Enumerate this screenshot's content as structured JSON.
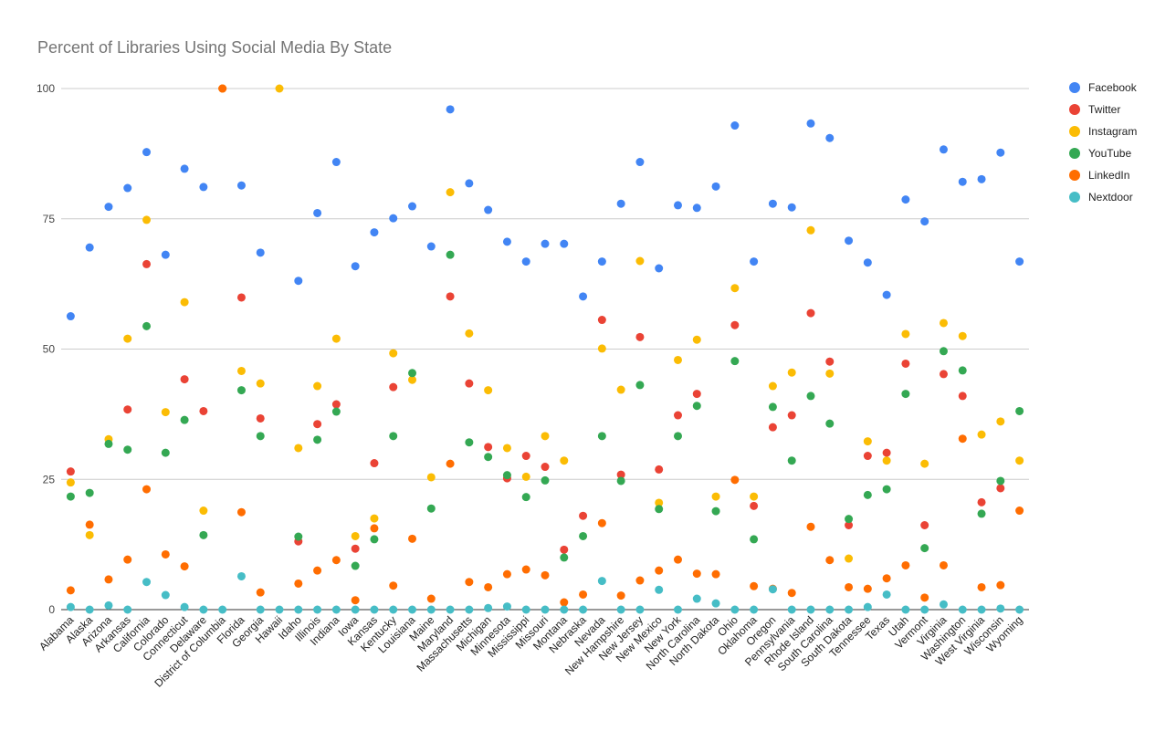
{
  "chart_data": {
    "type": "scatter",
    "title": "Percent of Libraries Using Social Media By State",
    "xlabel": "",
    "ylabel": "",
    "ylim": [
      0,
      100
    ],
    "yticks": [
      0,
      25,
      50,
      75,
      100
    ],
    "grid": true,
    "legend_position": "right",
    "categories": [
      "Alabama",
      "Alaska",
      "Arizona",
      "Arkansas",
      "California",
      "Colorado",
      "Connecticut",
      "Delaware",
      "District of Columbia",
      "Florida",
      "Georgia",
      "Hawaii",
      "Idaho",
      "Illinois",
      "Indiana",
      "Iowa",
      "Kansas",
      "Kentucky",
      "Louisiana",
      "Maine",
      "Maryland",
      "Massachusetts",
      "Michigan",
      "Minnesota",
      "Mississippi",
      "Missouri",
      "Montana",
      "Nebraska",
      "Nevada",
      "New Hampshire",
      "New Jersey",
      "New Mexico",
      "New York",
      "North Carolina",
      "North Dakota",
      "Ohio",
      "Oklahoma",
      "Oregon",
      "Pennsylvania",
      "Rhode Island",
      "South Carolina",
      "South Dakota",
      "Tennessee",
      "Texas",
      "Utah",
      "Vermont",
      "Virginia",
      "Washington",
      "West Virginia",
      "Wisconsin",
      "Wyoming"
    ],
    "series": [
      {
        "name": "Facebook",
        "color": "#4285F4",
        "values": [
          56.3,
          69.5,
          77.3,
          80.9,
          87.8,
          68.1,
          84.6,
          81.1,
          null,
          81.4,
          68.5,
          null,
          63.1,
          76.1,
          85.9,
          65.9,
          72.4,
          75.1,
          77.4,
          69.7,
          96.0,
          81.8,
          76.7,
          70.6,
          66.8,
          70.2,
          70.2,
          60.1,
          66.8,
          77.9,
          85.9,
          65.5,
          77.6,
          77.1,
          81.2,
          92.9,
          66.8,
          77.9,
          77.2,
          93.3,
          90.5,
          70.8,
          66.6,
          60.4,
          78.7,
          74.5,
          88.3,
          82.1,
          82.6,
          87.7,
          66.8
        ]
      },
      {
        "name": "Twitter",
        "color": "#EA4335",
        "values": [
          26.5,
          null,
          null,
          38.4,
          66.3,
          null,
          44.2,
          38.1,
          100,
          59.9,
          36.7,
          null,
          13.1,
          35.6,
          39.4,
          11.7,
          28.1,
          42.7,
          null,
          null,
          60.1,
          43.4,
          31.2,
          25.2,
          29.5,
          27.4,
          11.5,
          18.0,
          55.6,
          25.9,
          52.3,
          26.9,
          37.3,
          41.4,
          null,
          54.6,
          19.9,
          35.0,
          37.3,
          56.9,
          47.6,
          16.2,
          29.5,
          30.1,
          47.2,
          16.2,
          45.2,
          41.0,
          20.6,
          23.3,
          null
        ]
      },
      {
        "name": "Instagram",
        "color": "#FBBC04",
        "values": [
          24.4,
          14.3,
          32.7,
          52.0,
          74.8,
          37.9,
          59.0,
          19.0,
          100,
          45.8,
          43.4,
          100,
          31.0,
          42.9,
          52.0,
          14.1,
          17.5,
          49.2,
          44.1,
          25.4,
          80.1,
          53.0,
          42.1,
          31.0,
          25.5,
          33.3,
          28.6,
          null,
          50.1,
          42.2,
          66.9,
          20.5,
          47.9,
          51.8,
          21.7,
          61.7,
          21.7,
          42.9,
          45.5,
          72.8,
          45.3,
          9.8,
          32.3,
          28.6,
          52.9,
          28.0,
          55.0,
          52.5,
          33.6,
          36.1,
          28.6
        ]
      },
      {
        "name": "YouTube",
        "color": "#34A853",
        "values": [
          21.7,
          22.4,
          31.8,
          30.7,
          54.4,
          30.1,
          36.4,
          14.3,
          null,
          42.1,
          33.3,
          null,
          14.0,
          32.6,
          38.0,
          8.4,
          13.5,
          33.3,
          45.4,
          19.4,
          68.1,
          32.1,
          29.3,
          25.8,
          21.6,
          24.8,
          10.0,
          14.1,
          33.3,
          24.7,
          43.1,
          19.3,
          33.3,
          39.1,
          18.9,
          47.7,
          13.5,
          38.9,
          28.6,
          41.0,
          35.7,
          17.4,
          22.0,
          23.1,
          41.4,
          11.8,
          49.6,
          45.9,
          18.4,
          24.7,
          38.1
        ]
      },
      {
        "name": "LinkedIn",
        "color": "#FF6D01",
        "values": [
          3.7,
          16.3,
          5.8,
          9.6,
          23.1,
          10.6,
          8.3,
          null,
          100,
          18.7,
          3.3,
          null,
          5.0,
          7.5,
          9.5,
          1.8,
          15.6,
          4.6,
          13.6,
          2.1,
          28.0,
          5.3,
          4.3,
          6.8,
          7.7,
          6.6,
          1.4,
          2.9,
          16.6,
          2.7,
          5.6,
          7.5,
          9.6,
          6.9,
          6.8,
          24.9,
          4.5,
          4.0,
          3.2,
          15.9,
          9.5,
          4.3,
          4.0,
          6.0,
          8.5,
          2.3,
          8.5,
          32.8,
          4.3,
          4.7,
          19.0
        ]
      },
      {
        "name": "Nextdoor",
        "color": "#46BDC6",
        "values": [
          0.5,
          0,
          0.8,
          0,
          5.3,
          2.8,
          0.5,
          0,
          0,
          6.4,
          0,
          0,
          0,
          0,
          0,
          0,
          0,
          0,
          0,
          0,
          0,
          0,
          0.3,
          0.6,
          0,
          0,
          0,
          0,
          5.5,
          0,
          0,
          3.8,
          0,
          2.1,
          1.2,
          0,
          0,
          3.9,
          0,
          0,
          0,
          0,
          0.5,
          2.9,
          0,
          0,
          1.0,
          0,
          0,
          0.2,
          0
        ]
      }
    ]
  }
}
